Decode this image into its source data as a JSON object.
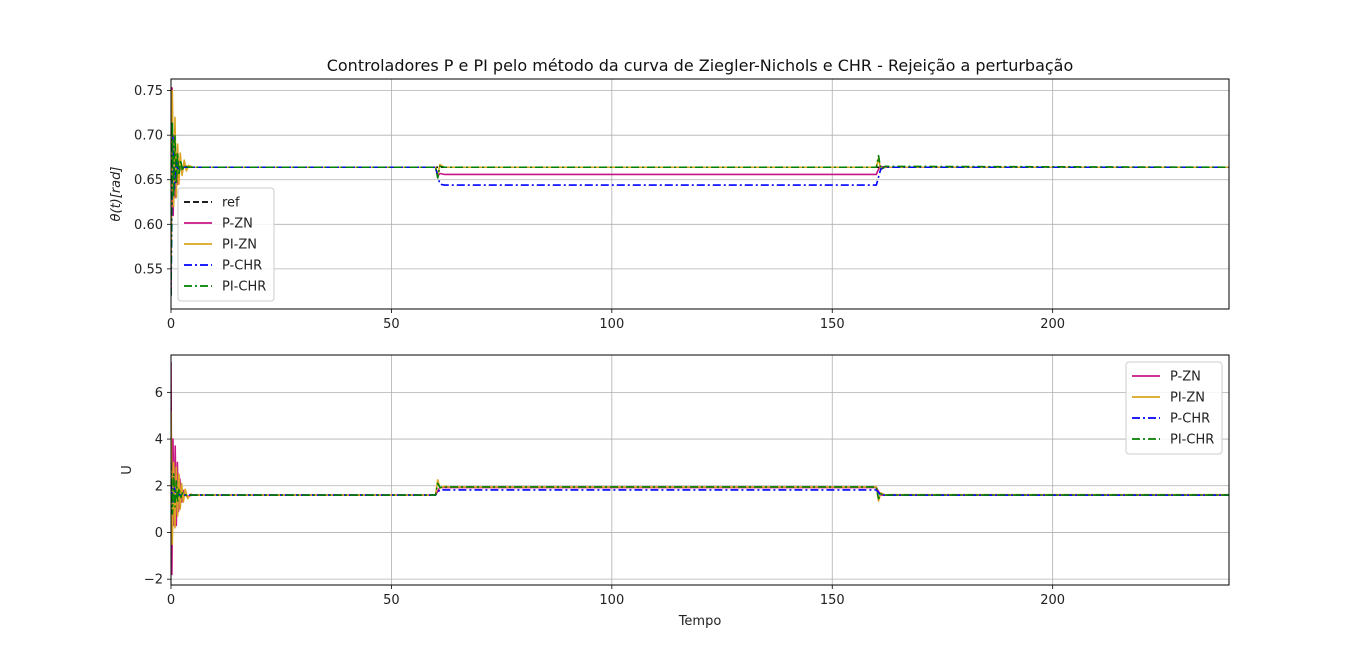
{
  "chart_data": [
    {
      "type": "line",
      "title": "Controladores P e PI pelo método da curva de Ziegler-Nichols e CHR - Rejeição a perturbação",
      "xlabel": "",
      "ylabel": "θ(t)[rad]",
      "xlim": [
        0,
        240
      ],
      "ylim": [
        0.505,
        0.763
      ],
      "xticks": [
        "0",
        "50",
        "100",
        "150",
        "200"
      ],
      "yticks": [
        "0.55",
        "0.60",
        "0.65",
        "0.70",
        "0.75"
      ],
      "grid": true,
      "legend_position": "lower-left",
      "disturbance_interval": [
        60,
        160
      ],
      "series": [
        {
          "name": "ref",
          "color": "#000000",
          "dash": "dashed",
          "x": [
            0,
            240
          ],
          "y": [
            0.664,
            0.664
          ]
        },
        {
          "name": "P-ZN",
          "color": "#c71585",
          "dash": "solid",
          "x": [
            0,
            0.25,
            0.5,
            0.75,
            1.0,
            1.25,
            1.5,
            2,
            2.5,
            3,
            4,
            5,
            60,
            60.5,
            61,
            62,
            160,
            160.5,
            161,
            162,
            240
          ],
          "y": [
            0.52,
            0.753,
            0.61,
            0.7,
            0.63,
            0.68,
            0.645,
            0.672,
            0.658,
            0.666,
            0.664,
            0.664,
            0.664,
            0.654,
            0.657,
            0.656,
            0.656,
            0.662,
            0.665,
            0.664,
            0.664
          ]
        },
        {
          "name": "PI-ZN",
          "color": "#daa520",
          "dash": "solid",
          "x": [
            0,
            0.3,
            0.6,
            0.9,
            1.2,
            1.5,
            1.8,
            2.1,
            2.5,
            3,
            3.5,
            4,
            5,
            60,
            60.5,
            61,
            62,
            63,
            160,
            160.5,
            161,
            162,
            163,
            240
          ],
          "y": [
            0.55,
            0.75,
            0.62,
            0.72,
            0.63,
            0.69,
            0.645,
            0.68,
            0.655,
            0.672,
            0.66,
            0.666,
            0.664,
            0.664,
            0.655,
            0.667,
            0.664,
            0.664,
            0.664,
            0.674,
            0.661,
            0.665,
            0.664,
            0.664
          ]
        },
        {
          "name": "P-CHR",
          "color": "#0000ff",
          "dash": "dashdot",
          "x": [
            0,
            0.4,
            0.8,
            1.2,
            1.6,
            2.0,
            3,
            60,
            61,
            62,
            160,
            161,
            162,
            240
          ],
          "y": [
            0.52,
            0.7,
            0.64,
            0.67,
            0.66,
            0.664,
            0.664,
            0.664,
            0.645,
            0.644,
            0.644,
            0.662,
            0.664,
            0.664
          ]
        },
        {
          "name": "PI-CHR",
          "color": "#008000",
          "dash": "dashdot",
          "x": [
            0,
            0.3,
            0.6,
            0.9,
            1.2,
            1.5,
            1.8,
            2.2,
            2.6,
            3,
            4,
            60,
            60.5,
            61,
            62,
            160,
            160.5,
            161,
            162,
            240
          ],
          "y": [
            0.52,
            0.715,
            0.63,
            0.7,
            0.645,
            0.68,
            0.655,
            0.672,
            0.66,
            0.666,
            0.664,
            0.664,
            0.652,
            0.665,
            0.664,
            0.664,
            0.677,
            0.662,
            0.665,
            0.664
          ]
        }
      ]
    },
    {
      "type": "line",
      "title": "",
      "xlabel": "Tempo",
      "ylabel": "U",
      "xlim": [
        0,
        240
      ],
      "ylim": [
        -2.25,
        7.6
      ],
      "xticks": [
        "0",
        "50",
        "100",
        "150",
        "200"
      ],
      "yticks": [
        "−2",
        "0",
        "2",
        "4",
        "6"
      ],
      "grid": true,
      "legend_position": "upper-right",
      "series": [
        {
          "name": "P-ZN",
          "color": "#c71585",
          "dash": "solid",
          "x": [
            0,
            0.2,
            0.45,
            0.7,
            0.95,
            1.2,
            1.45,
            1.7,
            2.0,
            2.4,
            2.8,
            3.5,
            5,
            60,
            61,
            62,
            160,
            161,
            162,
            240
          ],
          "y": [
            7.3,
            -1.8,
            4.0,
            0.3,
            3.7,
            0.3,
            3.0,
            0.9,
            2.3,
            1.3,
            1.8,
            1.55,
            1.6,
            1.6,
            1.93,
            1.92,
            1.92,
            1.6,
            1.6,
            1.6
          ]
        },
        {
          "name": "PI-ZN",
          "color": "#daa520",
          "dash": "solid",
          "x": [
            0,
            0.3,
            0.6,
            0.9,
            1.2,
            1.5,
            1.8,
            2.1,
            2.4,
            2.8,
            3.2,
            3.8,
            4.5,
            5,
            60,
            60.5,
            61,
            62,
            63,
            160,
            160.5,
            161,
            162,
            163,
            240
          ],
          "y": [
            5.2,
            -0.5,
            3.0,
            0.2,
            2.8,
            0.7,
            2.5,
            1.0,
            2.1,
            1.3,
            1.85,
            1.45,
            1.65,
            1.6,
            1.6,
            2.25,
            1.9,
            1.98,
            1.95,
            1.95,
            1.35,
            1.7,
            1.6,
            1.62,
            1.62
          ]
        },
        {
          "name": "P-CHR",
          "color": "#0000ff",
          "dash": "dashdot",
          "x": [
            0,
            0.4,
            0.8,
            1.2,
            1.6,
            2.0,
            3,
            60,
            61,
            62,
            160,
            161,
            162,
            240
          ],
          "y": [
            2.2,
            1.3,
            1.9,
            1.45,
            1.7,
            1.6,
            1.6,
            1.6,
            1.83,
            1.82,
            1.82,
            1.6,
            1.6,
            1.6
          ]
        },
        {
          "name": "PI-CHR",
          "color": "#008000",
          "dash": "dashdot",
          "x": [
            0,
            0.3,
            0.6,
            0.9,
            1.2,
            1.5,
            1.8,
            2.2,
            2.6,
            3,
            4,
            60,
            60.5,
            61,
            62,
            160,
            160.5,
            161,
            162,
            240
          ],
          "y": [
            3.0,
            0.8,
            2.5,
            1.1,
            2.2,
            1.3,
            1.9,
            1.5,
            1.7,
            1.6,
            1.6,
            1.6,
            2.1,
            1.93,
            1.95,
            1.95,
            1.45,
            1.65,
            1.6,
            1.6
          ]
        }
      ]
    }
  ]
}
